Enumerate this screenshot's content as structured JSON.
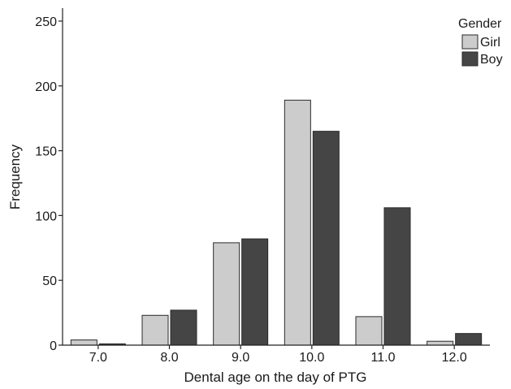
{
  "chart_data": {
    "type": "bar",
    "title": "",
    "xlabel": "Dental age on the day of PTG",
    "ylabel": "Frequency",
    "categories": [
      "7.0",
      "8.0",
      "9.0",
      "10.0",
      "11.0",
      "12.0"
    ],
    "series": [
      {
        "name": "Girl",
        "values": [
          4,
          23,
          79,
          189,
          22,
          3
        ],
        "color": "#cccccc"
      },
      {
        "name": "Boy",
        "values": [
          1,
          27,
          82,
          165,
          106,
          9
        ],
        "color": "#454545"
      }
    ],
    "ylim": [
      0,
      260
    ],
    "yticks": [
      "0",
      "50",
      "100",
      "150",
      "200",
      "250"
    ],
    "grid": false,
    "legend": {
      "title": "Gender",
      "placement": "top-right"
    }
  }
}
